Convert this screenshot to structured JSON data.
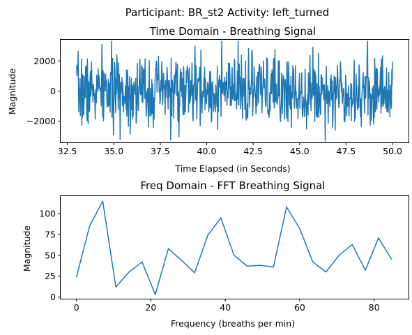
{
  "figure": {
    "suptitle": "Participant: BR_st2  Activity: left_turned"
  },
  "chart_data": [
    {
      "type": "line",
      "title": "Time Domain - Breathing Signal",
      "xlabel": "Time Elapsed (in Seconds)",
      "ylabel": "Magnitude",
      "xlim": [
        32.14,
        50.86
      ],
      "ylim": [
        -3400,
        3400
      ],
      "xticks": [
        32.5,
        35.0,
        37.5,
        40.0,
        42.5,
        45.0,
        47.5,
        50.0
      ],
      "xtick_labels": [
        "32.5",
        "35.0",
        "37.5",
        "40.0",
        "42.5",
        "45.0",
        "47.5",
        "50.0"
      ],
      "yticks": [
        -2000,
        0,
        2000
      ],
      "ytick_labels": [
        "−2000",
        "0",
        "2000"
      ],
      "grid": false,
      "color": "#1f77b4",
      "series": [
        {
          "x_start": 33.0,
          "x_end": 50.0,
          "n_points": 850,
          "seed": 7,
          "amplitude_sd": 1150,
          "clip": [
            -3300,
            3300
          ]
        }
      ]
    },
    {
      "type": "line",
      "title": "Freq Domain - FFT Breathing Signal",
      "xlabel": "Frequency (breaths per min)",
      "ylabel": "Magnitude",
      "xlim": [
        -4.25,
        89.25
      ],
      "ylim": [
        -2.0,
        121.0
      ],
      "xticks": [
        0,
        20,
        40,
        60,
        80
      ],
      "xtick_labels": [
        "0",
        "20",
        "40",
        "60",
        "80"
      ],
      "yticks": [
        0,
        25,
        50,
        75,
        100
      ],
      "ytick_labels": [
        "0",
        "25",
        "50",
        "75",
        "100"
      ],
      "grid": false,
      "color": "#1f77b4",
      "series": [
        {
          "x": [
            0.0,
            3.53,
            7.06,
            10.59,
            14.12,
            17.65,
            21.18,
            24.71,
            28.24,
            31.76,
            35.29,
            38.82,
            42.35,
            45.88,
            49.41,
            52.94,
            56.47,
            60.0,
            63.53,
            67.06,
            70.59,
            74.12,
            77.65,
            81.18,
            84.71
          ],
          "y": [
            24,
            85,
            115,
            12,
            30,
            42,
            3,
            58,
            44,
            29,
            74,
            95,
            50,
            37,
            38,
            36,
            108,
            82,
            42,
            30,
            50,
            63,
            32,
            71,
            45
          ]
        }
      ]
    }
  ]
}
